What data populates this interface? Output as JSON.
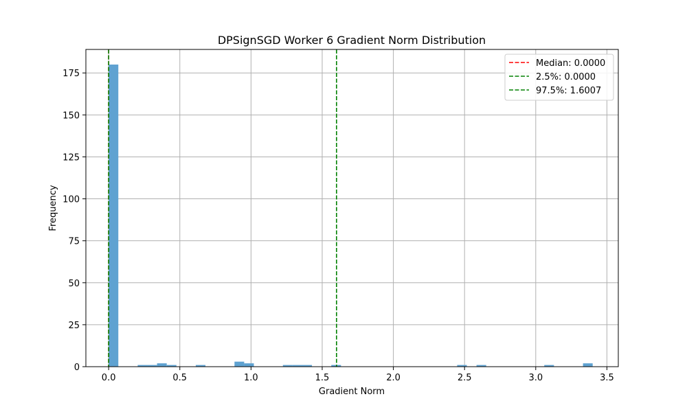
{
  "chart_data": {
    "type": "bar",
    "title": "DPSignSGD Worker 6 Gradient Norm Distribution",
    "xlabel": "Gradient Norm",
    "ylabel": "Frequency",
    "xlim": [
      -0.16,
      3.58
    ],
    "ylim": [
      0,
      189
    ],
    "xticks": [
      0.0,
      0.5,
      1.0,
      1.5,
      2.0,
      2.5,
      3.0,
      3.5
    ],
    "xtick_labels": [
      "0.0",
      "0.5",
      "1.0",
      "1.5",
      "2.0",
      "2.5",
      "3.0",
      "3.5"
    ],
    "yticks": [
      0,
      25,
      50,
      75,
      100,
      125,
      150,
      175
    ],
    "ytick_labels": [
      "0",
      "25",
      "50",
      "75",
      "100",
      "125",
      "150",
      "175"
    ],
    "grid": true,
    "bar_color": "#5fa2d1",
    "bins": [
      {
        "start": 0.0,
        "end": 0.068,
        "count": 180
      },
      {
        "start": 0.204,
        "end": 0.272,
        "count": 1
      },
      {
        "start": 0.272,
        "end": 0.34,
        "count": 1
      },
      {
        "start": 0.34,
        "end": 0.408,
        "count": 2
      },
      {
        "start": 0.408,
        "end": 0.476,
        "count": 1
      },
      {
        "start": 0.612,
        "end": 0.68,
        "count": 1
      },
      {
        "start": 0.884,
        "end": 0.952,
        "count": 3
      },
      {
        "start": 0.952,
        "end": 1.02,
        "count": 2
      },
      {
        "start": 1.224,
        "end": 1.292,
        "count": 1
      },
      {
        "start": 1.292,
        "end": 1.36,
        "count": 1
      },
      {
        "start": 1.36,
        "end": 1.428,
        "count": 1
      },
      {
        "start": 1.564,
        "end": 1.632,
        "count": 1
      },
      {
        "start": 2.448,
        "end": 2.516,
        "count": 1
      },
      {
        "start": 2.584,
        "end": 2.652,
        "count": 1
      },
      {
        "start": 3.06,
        "end": 3.128,
        "count": 1
      },
      {
        "start": 3.332,
        "end": 3.4,
        "count": 2
      }
    ],
    "reference_lines": [
      {
        "label": "Median: 0.0000",
        "x": 0.0,
        "color": "#ff0000"
      },
      {
        "label": "2.5%: 0.0000",
        "x": 0.0,
        "color": "#008000"
      },
      {
        "label": "97.5%: 1.6007",
        "x": 1.6007,
        "color": "#008000"
      }
    ],
    "legend_position": "top-right"
  }
}
